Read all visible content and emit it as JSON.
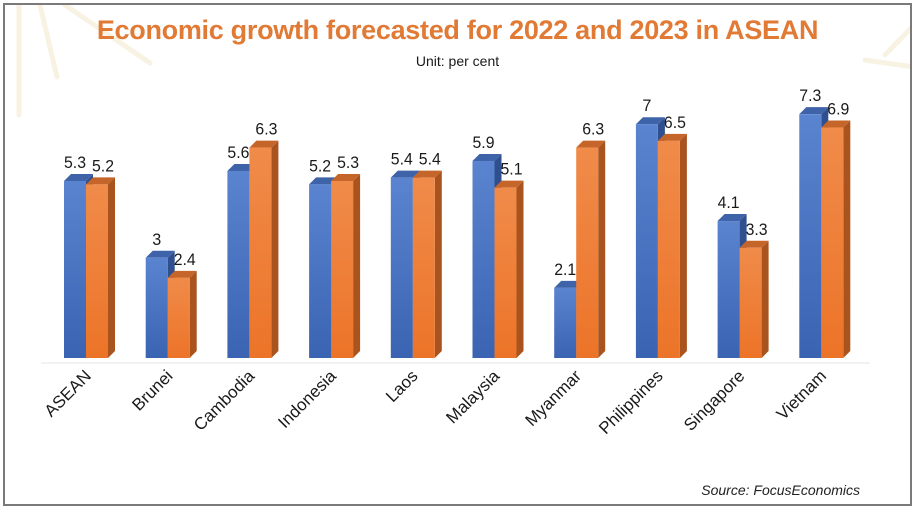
{
  "header": {
    "title": "Economic growth forecasted for 2022 and 2023 in ASEAN",
    "subtitle": "Unit: per cent"
  },
  "footer": {
    "source": "Source: FocusEconomics"
  },
  "colors": {
    "title": "#e07a35",
    "series_2022": "#4472c4",
    "series_2023": "#ed7d31"
  },
  "chart_data": {
    "type": "bar",
    "title": "Economic growth forecasted for 2022 and 2023 in ASEAN",
    "subtitle": "Unit: per cent",
    "xlabel": "",
    "ylabel": "",
    "ylim": [
      0,
      8
    ],
    "grid": false,
    "legend": "none",
    "style": "3d-clustered-column",
    "categories": [
      "ASEAN",
      "Brunei",
      "Cambodia",
      "Indonesia",
      "Laos",
      "Malaysia",
      "Myanmar",
      "Philippines",
      "Singapore",
      "Vietnam"
    ],
    "series": [
      {
        "name": "2022",
        "color": "#4472c4",
        "values": [
          5.3,
          3,
          5.6,
          5.2,
          5.4,
          5.9,
          2.1,
          7,
          4.1,
          7.3
        ],
        "labels": [
          "5.3",
          "3",
          "5.6",
          "5.2",
          "5.4",
          "5.9",
          "2.1",
          "7",
          "4.1",
          "7.3"
        ]
      },
      {
        "name": "2023",
        "color": "#ed7d31",
        "values": [
          5.2,
          2.4,
          6.3,
          5.3,
          5.4,
          5.1,
          6.3,
          6.5,
          3.3,
          6.9
        ],
        "labels": [
          "5.2",
          "2.4",
          "6.3",
          "5.3",
          "5.4",
          "5.1",
          "6.3",
          "6.5",
          "3.3",
          "6.9"
        ]
      }
    ],
    "source": "Source: FocusEconomics"
  }
}
